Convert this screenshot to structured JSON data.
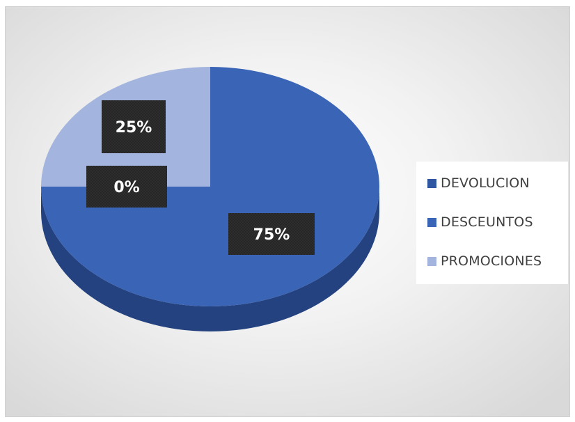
{
  "chart_data": {
    "type": "pie",
    "categories": [
      "DEVOLUCION",
      "DESCEUNTOS",
      "PROMOCIONES"
    ],
    "values": [
      0,
      75,
      25
    ],
    "labels": [
      "0%",
      "75%",
      "25%"
    ],
    "colors": [
      "#2f56a0",
      "#3a64b5",
      "#a3b5de"
    ],
    "side_colors": [
      "#1f3c74",
      "#24427f",
      "#7688b3"
    ],
    "label_box_color": "#262626",
    "label_text_color": "#ffffff",
    "legend_position": "right",
    "style": "3d"
  }
}
